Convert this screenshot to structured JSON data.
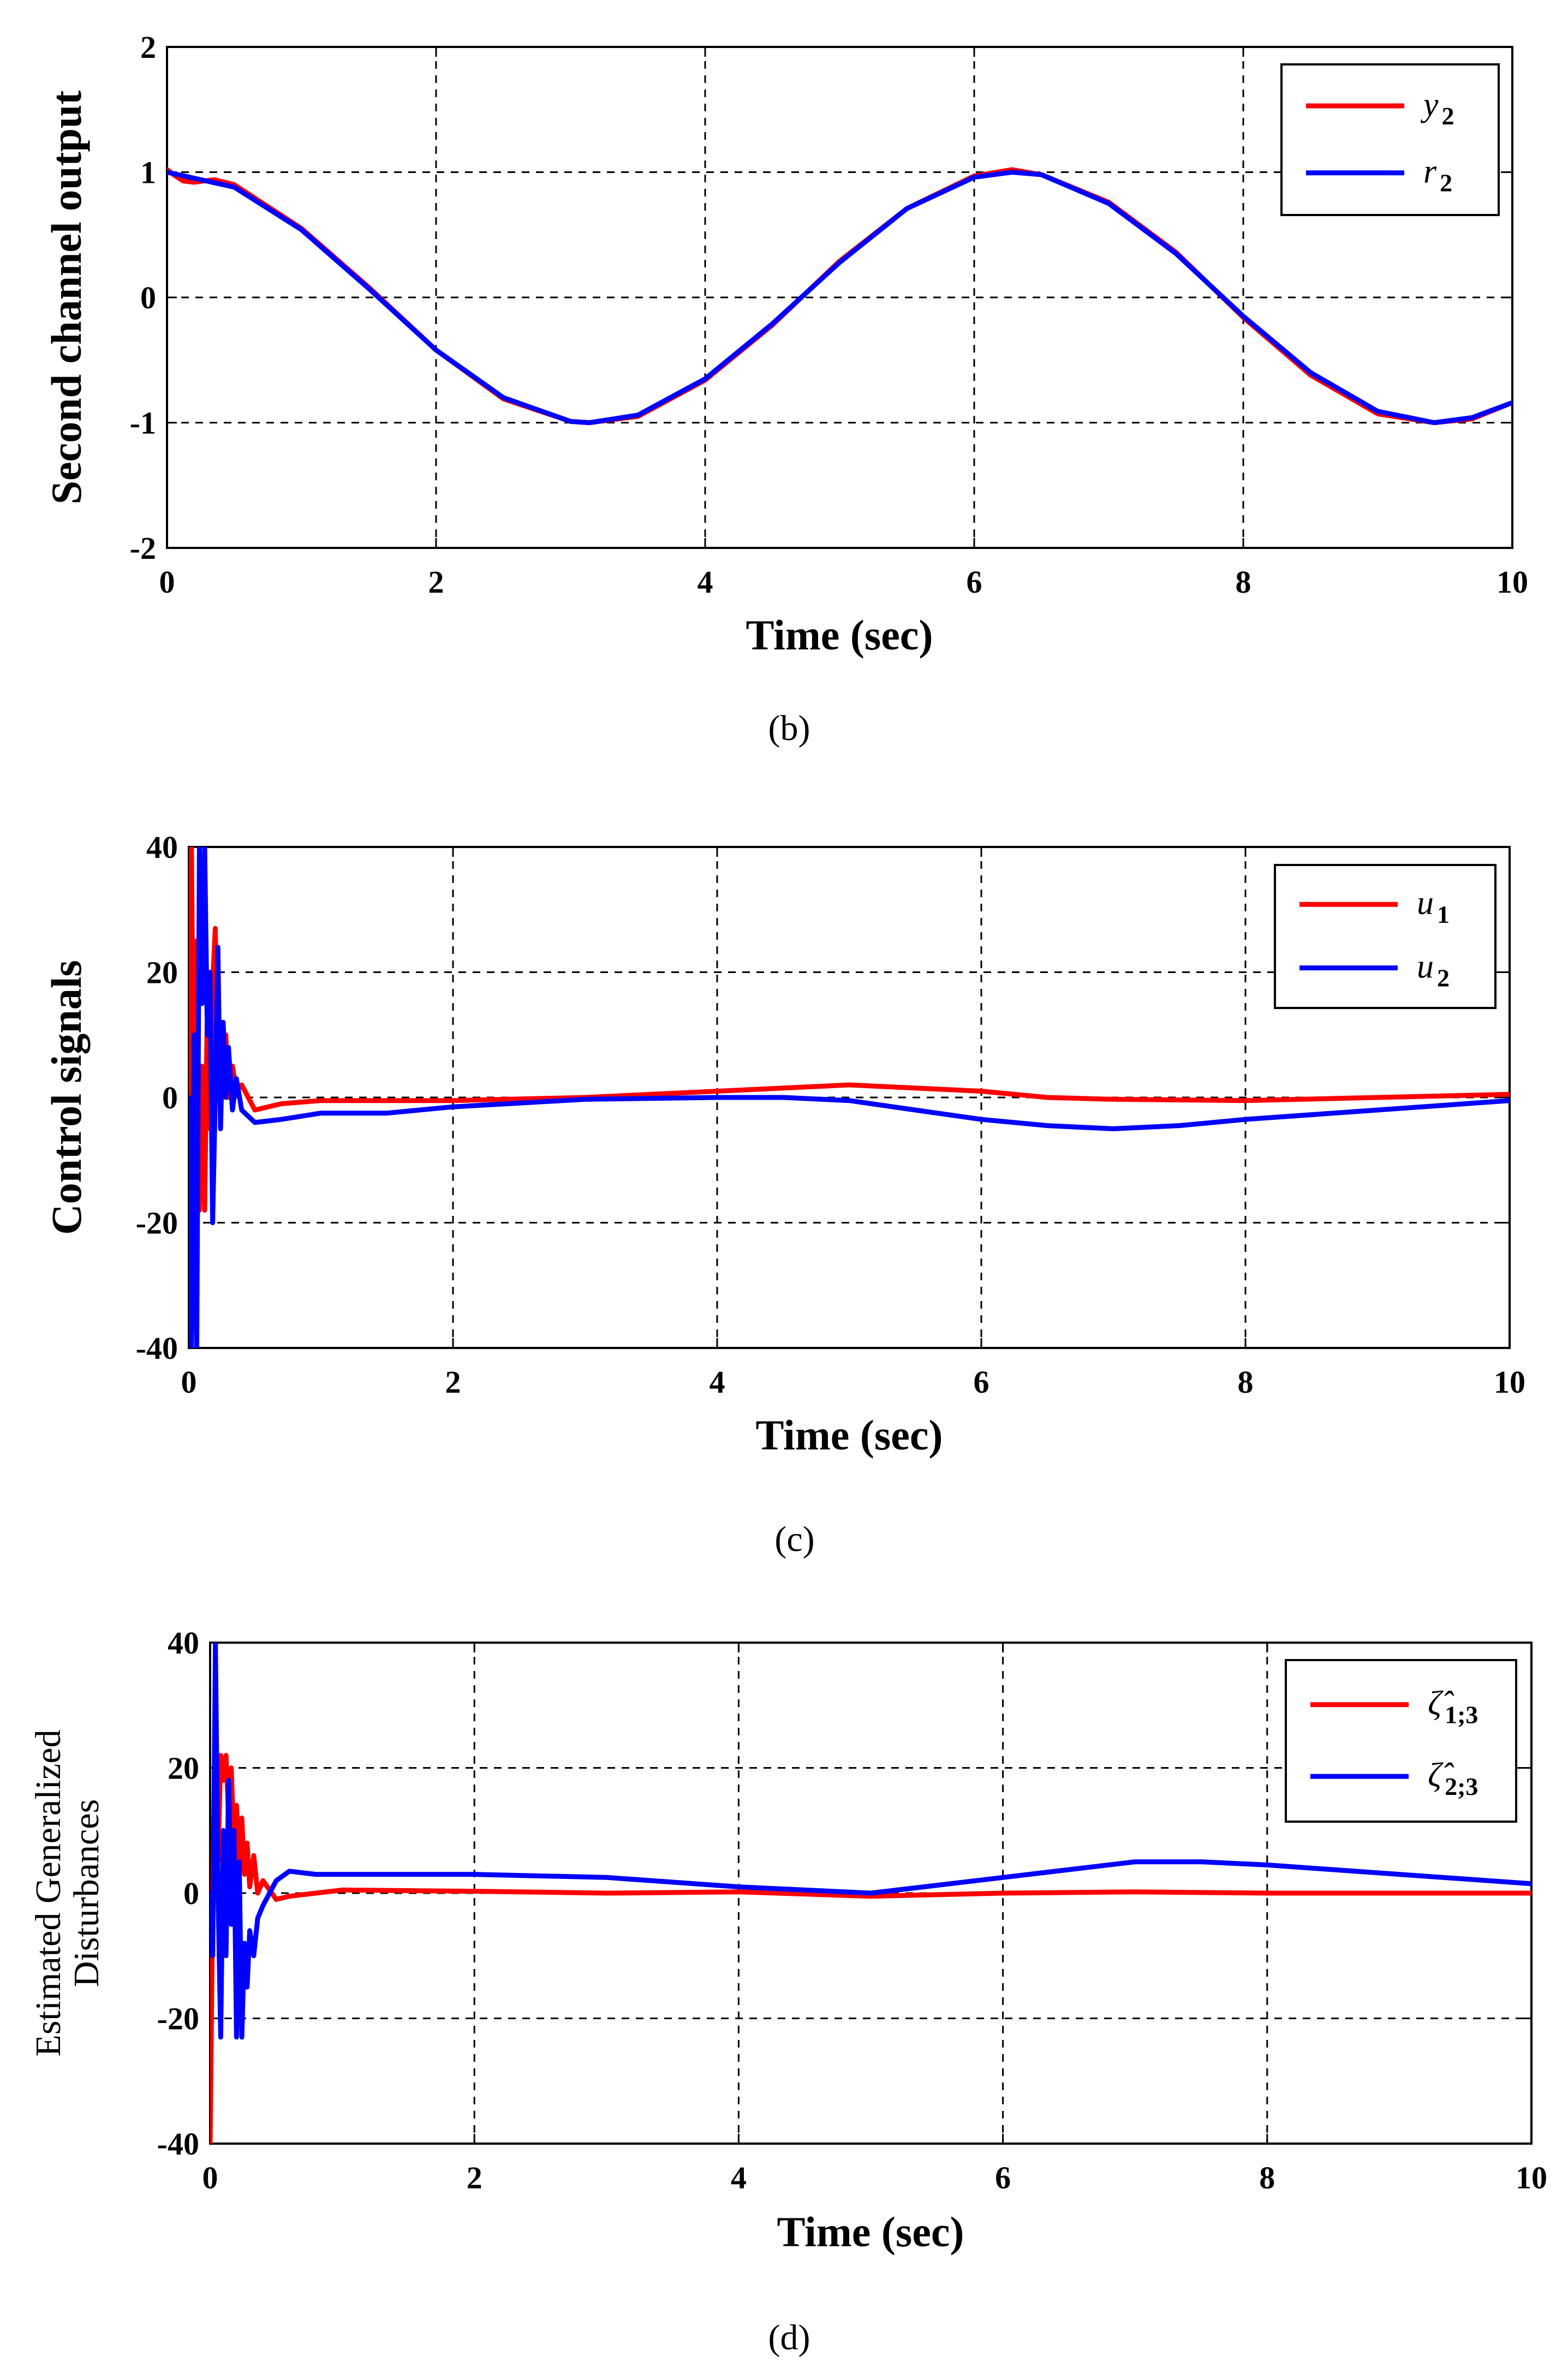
{
  "chart_data": [
    {
      "id": "b",
      "type": "line",
      "caption": "(b)",
      "xlabel": "Time (sec)",
      "ylabel": "Second channel output",
      "xlim": [
        0,
        10
      ],
      "ylim": [
        -2,
        2
      ],
      "xticks": [
        0,
        2,
        4,
        6,
        8,
        10
      ],
      "yticks": [
        -2,
        -1,
        0,
        1,
        2
      ],
      "xtick_labels": [
        "0",
        "2",
        "4",
        "6",
        "8",
        "10"
      ],
      "ytick_labels": [
        "-2",
        "-1",
        "0",
        "1",
        "2"
      ],
      "grid": true,
      "legend_position": "top-right",
      "legend": [
        {
          "symbol": "y",
          "subscript": "2",
          "color": "#ff0000"
        },
        {
          "symbol": "r",
          "subscript": "2",
          "color": "#0000ff"
        }
      ],
      "series": [
        {
          "name": "y2",
          "color": "#ff0000",
          "x": [
            0,
            0.05,
            0.12,
            0.2,
            0.35,
            0.5,
            1,
            1.5,
            2,
            2.5,
            3,
            3.14,
            3.5,
            4,
            4.5,
            5,
            5.5,
            6,
            6.28,
            6.5,
            7,
            7.5,
            8,
            8.5,
            9,
            9.42,
            9.7,
            10
          ],
          "y": [
            1.02,
            0.98,
            0.93,
            0.92,
            0.94,
            0.9,
            0.55,
            0.08,
            -0.42,
            -0.81,
            -0.99,
            -1.0,
            -0.95,
            -0.66,
            -0.22,
            0.29,
            0.71,
            0.97,
            1.02,
            0.98,
            0.76,
            0.36,
            -0.16,
            -0.62,
            -0.93,
            -1.0,
            -0.97,
            -0.84
          ]
        },
        {
          "name": "r2",
          "color": "#0000ff",
          "x": [
            0,
            0.5,
            1,
            1.5,
            2,
            2.5,
            3,
            3.14,
            3.5,
            4,
            4.5,
            5,
            5.5,
            6,
            6.28,
            6.5,
            7,
            7.5,
            8,
            8.5,
            9,
            9.42,
            9.7,
            10
          ],
          "y": [
            1.0,
            0.88,
            0.54,
            0.07,
            -0.42,
            -0.8,
            -0.99,
            -1.0,
            -0.94,
            -0.65,
            -0.21,
            0.28,
            0.71,
            0.96,
            1.0,
            0.98,
            0.75,
            0.35,
            -0.15,
            -0.6,
            -0.91,
            -1.0,
            -0.96,
            -0.84
          ]
        }
      ]
    },
    {
      "id": "c",
      "type": "line",
      "caption": "(c)",
      "xlabel": "Time (sec)",
      "ylabel": "Control signals",
      "xlim": [
        0,
        10
      ],
      "ylim": [
        -40,
        40
      ],
      "xticks": [
        0,
        2,
        4,
        6,
        8,
        10
      ],
      "yticks": [
        -40,
        -20,
        0,
        20,
        40
      ],
      "xtick_labels": [
        "0",
        "2",
        "4",
        "6",
        "8",
        "10"
      ],
      "ytick_labels": [
        "-40",
        "-20",
        "0",
        "20",
        "40"
      ],
      "grid": true,
      "legend_position": "top-right",
      "legend": [
        {
          "symbol": "u",
          "subscript": "1",
          "color": "#ff0000"
        },
        {
          "symbol": "u",
          "subscript": "2",
          "color": "#0000ff"
        }
      ],
      "series": [
        {
          "name": "u1",
          "color": "#ff0000",
          "x": [
            0,
            0.02,
            0.04,
            0.06,
            0.08,
            0.1,
            0.12,
            0.14,
            0.16,
            0.18,
            0.2,
            0.22,
            0.24,
            0.26,
            0.28,
            0.3,
            0.33,
            0.36,
            0.4,
            0.5,
            0.7,
            1,
            1.5,
            2,
            3,
            4,
            4.5,
            5,
            5.5,
            6,
            6.5,
            7,
            8,
            9,
            10
          ],
          "y": [
            0,
            40,
            -10,
            25,
            -18,
            5,
            -18,
            15,
            -5,
            18,
            27,
            5,
            12,
            2,
            10,
            0,
            5,
            1,
            2,
            -2,
            -1,
            -0.5,
            -0.5,
            -0.5,
            0,
            1,
            1.5,
            2,
            1.5,
            1,
            0,
            -0.3,
            -0.5,
            0,
            0.5
          ]
        },
        {
          "name": "u2",
          "color": "#0000ff",
          "x": [
            0,
            0.02,
            0.04,
            0.06,
            0.08,
            0.1,
            0.12,
            0.14,
            0.16,
            0.18,
            0.2,
            0.22,
            0.24,
            0.26,
            0.28,
            0.3,
            0.33,
            0.36,
            0.4,
            0.5,
            0.7,
            1,
            1.5,
            2,
            3,
            4,
            4.5,
            5,
            5.5,
            6,
            6.5,
            7,
            7.5,
            8,
            9,
            10
          ],
          "y": [
            0,
            -40,
            10,
            -40,
            40,
            15,
            40,
            10,
            20,
            -20,
            0,
            24,
            -5,
            12,
            0,
            8,
            -2,
            3,
            -2,
            -4,
            -3.5,
            -2.5,
            -2.5,
            -1.5,
            -0.3,
            0,
            0,
            -0.5,
            -2,
            -3.5,
            -4.5,
            -5,
            -4.5,
            -3.5,
            -2,
            -0.5
          ]
        }
      ]
    },
    {
      "id": "d",
      "type": "line",
      "caption": "(d)",
      "xlabel": "Time (sec)",
      "ylabel_lines": [
        "Estimated Generalized",
        "Disturbances"
      ],
      "xlim": [
        0,
        10
      ],
      "ylim": [
        -40,
        40
      ],
      "xticks": [
        0,
        2,
        4,
        6,
        8,
        10
      ],
      "yticks": [
        -40,
        -20,
        0,
        20,
        40
      ],
      "xtick_labels": [
        "0",
        "2",
        "4",
        "6",
        "8",
        "10"
      ],
      "ytick_labels": [
        "-40",
        "-20",
        "0",
        "20",
        "40"
      ],
      "grid": true,
      "legend_position": "top-right",
      "legend": [
        {
          "symbol": "ζ̂",
          "subscript": "1;3",
          "color": "#ff0000"
        },
        {
          "symbol": "ζ̂",
          "subscript": "2;3",
          "color": "#0000ff"
        }
      ],
      "series": [
        {
          "name": "zeta13",
          "color": "#ff0000",
          "x": [
            0,
            0.02,
            0.04,
            0.06,
            0.08,
            0.1,
            0.12,
            0.14,
            0.16,
            0.18,
            0.2,
            0.22,
            0.24,
            0.26,
            0.28,
            0.3,
            0.33,
            0.36,
            0.4,
            0.5,
            0.6,
            0.8,
            1,
            2,
            3,
            4,
            5,
            6,
            7,
            8,
            9,
            10
          ],
          "y": [
            -40,
            0,
            30,
            5,
            22,
            18,
            22,
            12,
            20,
            8,
            14,
            5,
            12,
            3,
            8,
            1,
            6,
            0,
            2,
            -1,
            -0.5,
            0,
            0.5,
            0.3,
            0,
            0.2,
            -0.5,
            0,
            0.2,
            0,
            0,
            0
          ]
        },
        {
          "name": "zeta23",
          "color": "#0000ff",
          "x": [
            0,
            0.02,
            0.04,
            0.06,
            0.08,
            0.1,
            0.12,
            0.14,
            0.16,
            0.18,
            0.2,
            0.22,
            0.24,
            0.26,
            0.28,
            0.3,
            0.33,
            0.36,
            0.4,
            0.5,
            0.6,
            0.8,
            1,
            1.5,
            2,
            3,
            4,
            5,
            6,
            7,
            7.5,
            8,
            9,
            10
          ],
          "y": [
            0,
            -10,
            40,
            0,
            -23,
            10,
            -10,
            18,
            -5,
            10,
            -23,
            5,
            -23,
            -8,
            -15,
            -6,
            -10,
            -4,
            -2,
            2,
            3.5,
            3,
            3,
            3,
            3,
            2.5,
            1,
            0,
            2.5,
            5,
            5,
            4.5,
            3,
            1.5
          ]
        }
      ]
    }
  ]
}
